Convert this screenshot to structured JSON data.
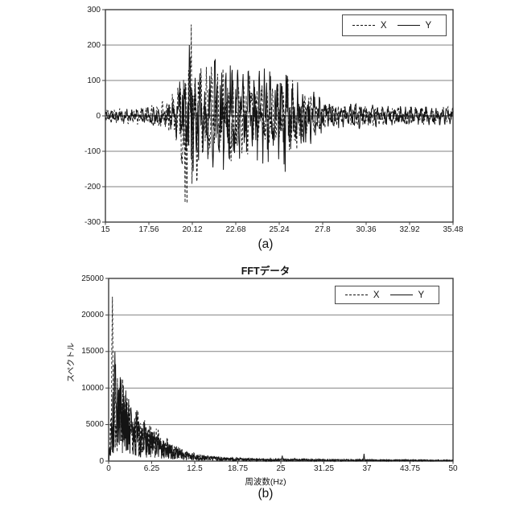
{
  "figure": {
    "background": "#ffffff",
    "text_color": "#1a1a1a",
    "grid_color": "#828282",
    "frame_color": "#3d3d3d",
    "series_color": "#141414"
  },
  "chart_data": [
    {
      "type": "line",
      "panel": "a",
      "caption": "(a)",
      "title": "",
      "xlabel": "",
      "ylabel": "",
      "xlim": [
        15,
        35.48
      ],
      "ylim": [
        -300,
        300
      ],
      "x_ticks": [
        15,
        17.56,
        20.12,
        22.68,
        25.24,
        27.8,
        30.36,
        32.92,
        35.48
      ],
      "x_tick_labels": [
        "15",
        "17.56",
        "20.12",
        "22.68",
        "25.24",
        "27.8",
        "30.36",
        "32.92",
        "35.48"
      ],
      "y_ticks": [
        300,
        200,
        100,
        0,
        -100,
        -200,
        -300
      ],
      "y_tick_labels": [
        "300",
        "200",
        "100",
        "0",
        "-100",
        "-200",
        "-300"
      ],
      "grid": "horizontal-only",
      "legend": {
        "position": "top-right-inside",
        "entries": [
          {
            "label": "X",
            "style": "dashed"
          },
          {
            "label": "Y",
            "style": "solid"
          }
        ]
      },
      "series": [
        {
          "name": "X",
          "style": "dashed",
          "model": "bipolar-noise",
          "envelope": [
            [
              15,
              20
            ],
            [
              16,
              22
            ],
            [
              17,
              25
            ],
            [
              18,
              32
            ],
            [
              18.6,
              45
            ],
            [
              19.1,
              70
            ],
            [
              19.4,
              140
            ],
            [
              19.7,
              245
            ],
            [
              20.1,
              255
            ],
            [
              20.4,
              180
            ],
            [
              20.7,
              120
            ],
            [
              21.1,
              150
            ],
            [
              21.5,
              120
            ],
            [
              22,
              135
            ],
            [
              22.4,
              150
            ],
            [
              22.8,
              120
            ],
            [
              23.2,
              100
            ],
            [
              23.6,
              120
            ],
            [
              24,
              95
            ],
            [
              24.5,
              75
            ],
            [
              25,
              85
            ],
            [
              25.4,
              100
            ],
            [
              25.9,
              130
            ],
            [
              26.3,
              100
            ],
            [
              26.8,
              70
            ],
            [
              27.2,
              50
            ],
            [
              27.6,
              38
            ],
            [
              28,
              30
            ],
            [
              29,
              26
            ],
            [
              30,
              28
            ],
            [
              31,
              26
            ],
            [
              32,
              24
            ],
            [
              33,
              26
            ],
            [
              34,
              24
            ],
            [
              35.48,
              26
            ]
          ],
          "anchors": [
            [
              19.7,
              -245
            ],
            [
              20.05,
              258
            ]
          ]
        },
        {
          "name": "Y",
          "style": "solid",
          "model": "bipolar-noise",
          "envelope": [
            [
              15,
              14
            ],
            [
              16,
              16
            ],
            [
              17,
              20
            ],
            [
              18,
              26
            ],
            [
              18.6,
              35
            ],
            [
              19.1,
              55
            ],
            [
              19.4,
              110
            ],
            [
              19.7,
              170
            ],
            [
              19.95,
              200
            ],
            [
              20.3,
              140
            ],
            [
              20.7,
              110
            ],
            [
              21.1,
              125
            ],
            [
              21.6,
              170
            ],
            [
              22,
              160
            ],
            [
              22.4,
              150
            ],
            [
              22.8,
              130
            ],
            [
              23.2,
              115
            ],
            [
              23.6,
              135
            ],
            [
              24,
              125
            ],
            [
              24.4,
              140
            ],
            [
              24.8,
              120
            ],
            [
              25.2,
              130
            ],
            [
              25.6,
              160
            ],
            [
              26,
              110
            ],
            [
              26.5,
              115
            ],
            [
              27,
              85
            ],
            [
              27.5,
              55
            ],
            [
              28,
              42
            ],
            [
              29,
              32
            ],
            [
              30,
              36
            ],
            [
              31,
              30
            ],
            [
              32,
              28
            ],
            [
              33,
              26
            ],
            [
              34,
              26
            ],
            [
              35.48,
              24
            ]
          ],
          "anchors": [
            [
              19.95,
              200
            ],
            [
              25.6,
              -158
            ]
          ]
        }
      ]
    },
    {
      "type": "line",
      "panel": "b",
      "caption": "(b)",
      "title": "FFTデータ",
      "xlabel": "周波数(Hz)",
      "ylabel": "スペクトル",
      "xlim": [
        0,
        50
      ],
      "ylim": [
        0,
        25000
      ],
      "x_ticks": [
        0,
        6.25,
        12.5,
        18.75,
        25,
        31.25,
        37.5,
        43.75,
        50
      ],
      "x_tick_labels": [
        "0",
        "6.25",
        "12.5",
        "18.75",
        "25",
        "31.25",
        "37",
        "43.75",
        "50"
      ],
      "y_ticks": [
        25000,
        20000,
        15000,
        10000,
        5000,
        0
      ],
      "y_tick_labels": [
        "25000",
        "20000",
        "15000",
        "10000",
        "5000",
        "0"
      ],
      "grid": "horizontal-only",
      "legend": {
        "position": "top-right-inside",
        "entries": [
          {
            "label": "X",
            "style": "dashed"
          },
          {
            "label": "Y",
            "style": "solid"
          }
        ]
      },
      "series": [
        {
          "name": "X",
          "style": "dashed",
          "model": "positive-noise",
          "envelope": [
            [
              0,
              400
            ],
            [
              0.3,
              6000
            ],
            [
              0.55,
              22500
            ],
            [
              0.8,
              10000
            ],
            [
              1.1,
              14500
            ],
            [
              1.5,
              12000
            ],
            [
              1.9,
              13000
            ],
            [
              2.3,
              10000
            ],
            [
              2.7,
              11000
            ],
            [
              3.1,
              8500
            ],
            [
              3.6,
              7500
            ],
            [
              4,
              8000
            ],
            [
              4.5,
              6000
            ],
            [
              5,
              6500
            ],
            [
              5.5,
              5000
            ],
            [
              6,
              5500
            ],
            [
              6.5,
              4200
            ],
            [
              7,
              4800
            ],
            [
              7.5,
              3500
            ],
            [
              8,
              3000
            ],
            [
              8.5,
              3300
            ],
            [
              9,
              2500
            ],
            [
              10,
              2000
            ],
            [
              11,
              1600
            ],
            [
              12.5,
              1100
            ],
            [
              14,
              800
            ],
            [
              16,
              600
            ],
            [
              18,
              500
            ],
            [
              20,
              400
            ],
            [
              22,
              350
            ],
            [
              25,
              300
            ],
            [
              28,
              350
            ],
            [
              31,
              250
            ],
            [
              34,
              250
            ],
            [
              37,
              250
            ],
            [
              40,
              200
            ],
            [
              44,
              200
            ],
            [
              47,
              180
            ],
            [
              50,
              160
            ]
          ],
          "anchors": [
            [
              0.55,
              22500
            ]
          ]
        },
        {
          "name": "Y",
          "style": "solid",
          "model": "positive-noise",
          "envelope": [
            [
              0,
              300
            ],
            [
              0.4,
              5000
            ],
            [
              0.9,
              15000
            ],
            [
              1.3,
              11000
            ],
            [
              1.7,
              12500
            ],
            [
              2.1,
              9500
            ],
            [
              2.6,
              10500
            ],
            [
              3,
              8000
            ],
            [
              3.5,
              7000
            ],
            [
              4,
              7500
            ],
            [
              4.5,
              5500
            ],
            [
              5,
              6000
            ],
            [
              5.5,
              4500
            ],
            [
              6,
              5000
            ],
            [
              6.5,
              3800
            ],
            [
              7,
              4300
            ],
            [
              7.5,
              3200
            ],
            [
              8,
              2800
            ],
            [
              9,
              2300
            ],
            [
              10,
              1800
            ],
            [
              11,
              1400
            ],
            [
              12.5,
              900
            ],
            [
              14,
              700
            ],
            [
              16,
              550
            ],
            [
              18,
              450
            ],
            [
              20,
              380
            ],
            [
              22,
              320
            ],
            [
              25,
              280
            ],
            [
              28,
              260
            ],
            [
              31,
              240
            ],
            [
              34,
              230
            ],
            [
              37,
              210
            ],
            [
              41,
              180
            ],
            [
              44,
              180
            ],
            [
              47,
              160
            ],
            [
              50,
              150
            ]
          ],
          "anchors": [
            [
              0.9,
              15000
            ],
            [
              25.2,
              750
            ],
            [
              37.1,
              1000
            ]
          ]
        }
      ]
    }
  ]
}
